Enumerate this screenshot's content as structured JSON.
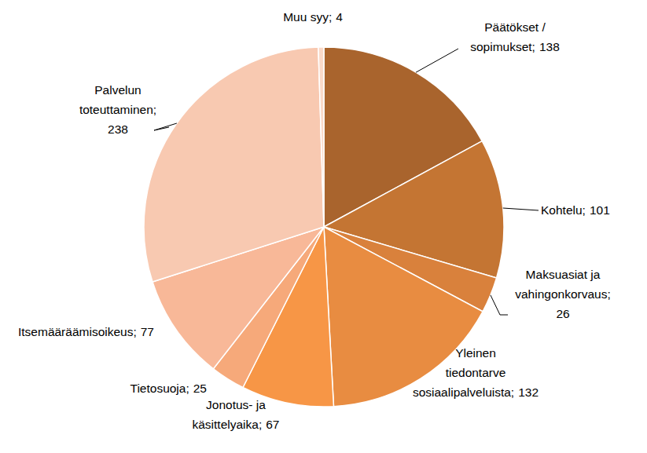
{
  "chart_data": {
    "type": "pie",
    "categories": [
      "Päätökset / sopimukset;",
      "Kohtelu;",
      "Maksuasiat ja vahingonkorvaus;",
      "Yleinen tiedontarve sosiaalipalveluista;",
      "Jonotus- ja käsittelyaika;",
      "Tietosuoja;",
      "Itsemääräämisoikeus;",
      "Palvelun toteuttaminen;",
      "Muu syy;"
    ],
    "values": [
      138,
      101,
      26,
      132,
      67,
      25,
      77,
      238,
      4
    ],
    "colors": [
      "#a9642d",
      "#c47533",
      "#d9813c",
      "#e88c41",
      "#f79646",
      "#f6a97a",
      "#f8b898",
      "#f8c9b1",
      "#fadac9"
    ],
    "data_labels": true
  }
}
